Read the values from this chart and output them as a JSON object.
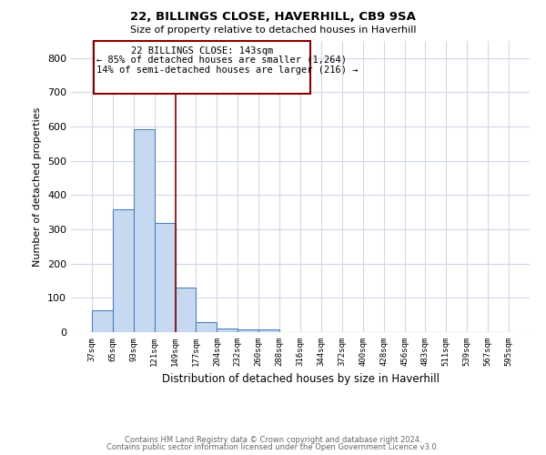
{
  "title1": "22, BILLINGS CLOSE, HAVERHILL, CB9 9SA",
  "title2": "Size of property relative to detached houses in Haverhill",
  "xlabel": "Distribution of detached houses by size in Haverhill",
  "ylabel": "Number of detached properties",
  "footnote1": "Contains HM Land Registry data © Crown copyright and database right 2024.",
  "footnote2": "Contains public sector information licensed under the Open Government Licence v3.0.",
  "annotation_line1": "22 BILLINGS CLOSE: 143sqm",
  "annotation_line2": "← 85% of detached houses are smaller (1,264)",
  "annotation_line3": "14% of semi-detached houses are larger (216) →",
  "bins": [
    "37sqm",
    "65sqm",
    "93sqm",
    "121sqm",
    "149sqm",
    "177sqm",
    "204sqm",
    "232sqm",
    "260sqm",
    "288sqm",
    "316sqm",
    "344sqm",
    "372sqm",
    "400sqm",
    "428sqm",
    "456sqm",
    "483sqm",
    "511sqm",
    "539sqm",
    "567sqm",
    "595sqm"
  ],
  "bar_heights": [
    65,
    358,
    593,
    320,
    130,
    28,
    10,
    8,
    7,
    0,
    0,
    0,
    0,
    0,
    0,
    0,
    0,
    0,
    0,
    0
  ],
  "bar_color": "#c6d9f0",
  "bar_edge_color": "#4f81bd",
  "bar_edge_width": 0.8,
  "red_line_bin": 4,
  "red_line_color": "#8b0000",
  "ylim": [
    0,
    850
  ],
  "yticks": [
    0,
    100,
    200,
    300,
    400,
    500,
    600,
    700,
    800
  ],
  "grid_color": "#d0d8e8",
  "background_color": "#ffffff",
  "annotation_box_color": "#8b0000"
}
